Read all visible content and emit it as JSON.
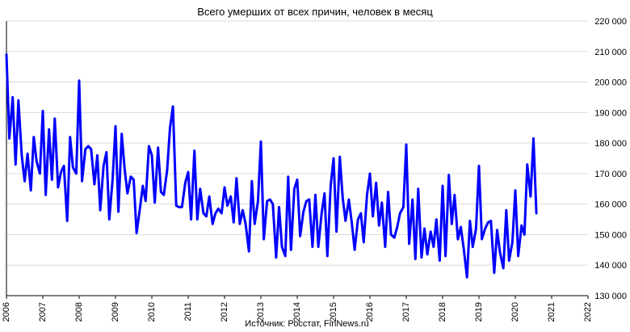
{
  "chart_data": {
    "type": "line",
    "title": "Всего умерших от всех причин, человек в месяц",
    "source": "Источник: Росстат, FinNews.ru",
    "xlabel": "",
    "ylabel": "",
    "ylim": [
      130000,
      220000
    ],
    "xlim": [
      2006,
      2022
    ],
    "y_ticks": [
      130000,
      140000,
      150000,
      160000,
      170000,
      180000,
      190000,
      200000,
      210000,
      220000
    ],
    "y_tick_labels": [
      "130 000",
      "140 000",
      "150 000",
      "160 000",
      "170 000",
      "180 000",
      "190 000",
      "200 000",
      "210 000",
      "220 000"
    ],
    "x_ticks": [
      2006,
      2007,
      2008,
      2009,
      2010,
      2011,
      2012,
      2013,
      2014,
      2015,
      2016,
      2017,
      2018,
      2019,
      2020,
      2021,
      2022
    ],
    "x_tick_labels": [
      "2006",
      "2007",
      "2008",
      "2009",
      "2010",
      "2011",
      "2012",
      "2013",
      "2014",
      "2015",
      "2016",
      "2017",
      "2018",
      "2019",
      "2020",
      "2021",
      "2022"
    ],
    "grid": "horizontal",
    "color": "#0000ff",
    "series": [
      {
        "x": [
          2006.0,
          2006.08,
          2006.17,
          2006.25,
          2006.33,
          2006.42,
          2006.5,
          2006.58,
          2006.67,
          2006.75,
          2006.83,
          2006.92,
          2007.0,
          2007.08,
          2007.17,
          2007.25,
          2007.33,
          2007.42,
          2007.5,
          2007.58,
          2007.67,
          2007.75,
          2007.83,
          2007.92,
          2008.0,
          2008.08,
          2008.17,
          2008.25,
          2008.33,
          2008.42,
          2008.5,
          2008.58,
          2008.67,
          2008.75,
          2008.83,
          2008.92,
          2009.0,
          2009.08,
          2009.17,
          2009.25,
          2009.33,
          2009.42,
          2009.5,
          2009.58,
          2009.67,
          2009.75,
          2009.83,
          2009.92,
          2010.0,
          2010.08,
          2010.17,
          2010.25,
          2010.33,
          2010.42,
          2010.5,
          2010.58,
          2010.67,
          2010.75,
          2010.83,
          2010.92,
          2011.0,
          2011.08,
          2011.17,
          2011.25,
          2011.33,
          2011.42,
          2011.5,
          2011.58,
          2011.67,
          2011.75,
          2011.83,
          2011.92,
          2012.0,
          2012.08,
          2012.17,
          2012.25,
          2012.33,
          2012.42,
          2012.5,
          2012.58,
          2012.67,
          2012.75,
          2012.83,
          2012.92,
          2013.0,
          2013.08,
          2013.17,
          2013.25,
          2013.33,
          2013.42,
          2013.5,
          2013.58,
          2013.67,
          2013.75,
          2013.83,
          2013.92,
          2014.0,
          2014.08,
          2014.17,
          2014.25,
          2014.33,
          2014.42,
          2014.5,
          2014.58,
          2014.67,
          2014.75,
          2014.83,
          2014.92,
          2015.0,
          2015.08,
          2015.17,
          2015.25,
          2015.33,
          2015.42,
          2015.5,
          2015.58,
          2015.67,
          2015.75,
          2015.83,
          2015.92,
          2016.0,
          2016.08,
          2016.17,
          2016.25,
          2016.33,
          2016.42,
          2016.5,
          2016.58,
          2016.67,
          2016.75,
          2016.83,
          2016.92,
          2017.0,
          2017.08,
          2017.17,
          2017.25,
          2017.33,
          2017.42,
          2017.5,
          2017.58,
          2017.67,
          2017.75,
          2017.83,
          2017.92,
          2018.0,
          2018.08,
          2018.17,
          2018.25,
          2018.33,
          2018.42,
          2018.5,
          2018.58,
          2018.67,
          2018.75,
          2018.83,
          2018.92,
          2019.0,
          2019.08,
          2019.17,
          2019.25,
          2019.33,
          2019.42,
          2019.5,
          2019.58,
          2019.67,
          2019.75,
          2019.83,
          2019.92,
          2020.0,
          2020.08,
          2020.17,
          2020.25,
          2020.33,
          2020.42,
          2020.5,
          2020.58
        ],
        "values": [
          209000,
          181500,
          195000,
          173000,
          194000,
          176000,
          167500,
          176500,
          164500,
          182000,
          174000,
          170000,
          190500,
          163000,
          184500,
          168000,
          188000,
          165500,
          170500,
          172500,
          154500,
          182000,
          172000,
          170000,
          200500,
          167500,
          178000,
          179000,
          178000,
          166500,
          176000,
          158000,
          172500,
          177000,
          155000,
          168000,
          185500,
          157500,
          183000,
          171500,
          163500,
          169000,
          168000,
          150500,
          158500,
          166000,
          161000,
          179000,
          176000,
          160500,
          178500,
          164000,
          163000,
          171000,
          185000,
          192000,
          159500,
          159000,
          159000,
          167000,
          170500,
          155000,
          177500,
          155000,
          165000,
          157000,
          156000,
          162500,
          153500,
          157000,
          158500,
          157000,
          165500,
          159500,
          162500,
          154000,
          168500,
          153500,
          158000,
          153500,
          144500,
          167500,
          153500,
          161000,
          180500,
          148500,
          161000,
          161500,
          160000,
          142500,
          159000,
          146000,
          143000,
          169000,
          145000,
          165000,
          168000,
          149500,
          157500,
          161000,
          161500,
          146000,
          163000,
          146000,
          157000,
          163500,
          143000,
          166000,
          175000,
          151000,
          175500,
          162000,
          154500,
          161500,
          154000,
          145000,
          155000,
          157000,
          147500,
          163000,
          170000,
          156000,
          167000,
          153000,
          160500,
          146000,
          164000,
          150000,
          149000,
          152500,
          157000,
          159000,
          179500,
          147000,
          161500,
          142000,
          165000,
          142500,
          152000,
          143500,
          151000,
          146000,
          155000,
          141500,
          166000,
          143000,
          169500,
          153500,
          163000,
          148500,
          152500,
          145500,
          136000,
          154500,
          146000,
          152000,
          172500,
          148500,
          152000,
          154000,
          154500,
          137500,
          151500,
          144000,
          139000,
          158000,
          141500,
          147500,
          164500,
          143000,
          153000,
          150000,
          173000,
          162500,
          181500,
          157000
        ]
      }
    ]
  }
}
